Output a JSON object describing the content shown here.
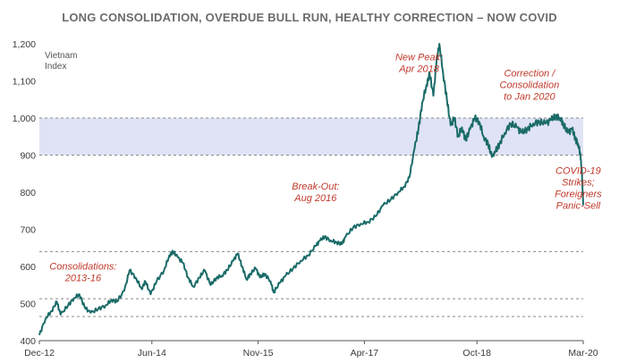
{
  "chart_data": {
    "type": "line",
    "title": "LONG CONSOLIDATION, OVERDUE BULL RUN, HEALTHY CORRECTION – NOW COVID",
    "ylabel_lines": [
      "Vietnam",
      "Index"
    ],
    "xlabel": "",
    "ylim": [
      400,
      1200
    ],
    "yticks": [
      400,
      500,
      600,
      700,
      800,
      900,
      1000,
      1100,
      1200
    ],
    "ytick_labels": [
      "400",
      "500",
      "600",
      "700",
      "800",
      "900",
      "1,000",
      "1,100",
      "1,200"
    ],
    "xlim": [
      2012.917,
      2020.167
    ],
    "xticks": [
      {
        "label": "Dec-12",
        "x": 2012.917
      },
      {
        "label": "Jun-14",
        "x": 2014.417
      },
      {
        "label": "Nov-15",
        "x": 2015.833
      },
      {
        "label": "Apr-17",
        "x": 2017.25
      },
      {
        "label": "Oct-18",
        "x": 2018.75
      },
      {
        "label": "Mar-20",
        "x": 2020.167
      }
    ],
    "band": {
      "from": 900,
      "to": 1000,
      "color": "#dfe3f5"
    },
    "reference_lines": [
      465,
      513,
      640,
      900,
      1000
    ],
    "line_color": "#1a6b68",
    "annotation_color": "#c0392b",
    "series": [
      {
        "name": "Vietnam Index",
        "points": [
          [
            2012.917,
            415
          ],
          [
            2013.0,
            460
          ],
          [
            2013.08,
            480
          ],
          [
            2013.15,
            505
          ],
          [
            2013.2,
            470
          ],
          [
            2013.3,
            495
          ],
          [
            2013.38,
            515
          ],
          [
            2013.45,
            525
          ],
          [
            2013.52,
            490
          ],
          [
            2013.6,
            475
          ],
          [
            2013.7,
            485
          ],
          [
            2013.8,
            495
          ],
          [
            2013.88,
            510
          ],
          [
            2013.95,
            505
          ],
          [
            2014.05,
            535
          ],
          [
            2014.12,
            590
          ],
          [
            2014.2,
            570
          ],
          [
            2014.28,
            540
          ],
          [
            2014.33,
            560
          ],
          [
            2014.4,
            525
          ],
          [
            2014.48,
            560
          ],
          [
            2014.58,
            590
          ],
          [
            2014.65,
            630
          ],
          [
            2014.7,
            640
          ],
          [
            2014.76,
            625
          ],
          [
            2014.83,
            610
          ],
          [
            2014.9,
            570
          ],
          [
            2014.97,
            545
          ],
          [
            2015.05,
            570
          ],
          [
            2015.12,
            590
          ],
          [
            2015.2,
            550
          ],
          [
            2015.28,
            570
          ],
          [
            2015.35,
            575
          ],
          [
            2015.42,
            590
          ],
          [
            2015.5,
            615
          ],
          [
            2015.56,
            635
          ],
          [
            2015.62,
            600
          ],
          [
            2015.68,
            565
          ],
          [
            2015.73,
            580
          ],
          [
            2015.8,
            595
          ],
          [
            2015.86,
            570
          ],
          [
            2015.92,
            580
          ],
          [
            2016.0,
            560
          ],
          [
            2016.04,
            530
          ],
          [
            2016.12,
            555
          ],
          [
            2016.2,
            575
          ],
          [
            2016.3,
            595
          ],
          [
            2016.4,
            615
          ],
          [
            2016.5,
            630
          ],
          [
            2016.6,
            655
          ],
          [
            2016.66,
            670
          ],
          [
            2016.72,
            680
          ],
          [
            2016.8,
            670
          ],
          [
            2016.88,
            665
          ],
          [
            2016.95,
            660
          ],
          [
            2017.0,
            680
          ],
          [
            2017.1,
            705
          ],
          [
            2017.2,
            715
          ],
          [
            2017.3,
            720
          ],
          [
            2017.4,
            735
          ],
          [
            2017.5,
            765
          ],
          [
            2017.6,
            780
          ],
          [
            2017.7,
            800
          ],
          [
            2017.78,
            815
          ],
          [
            2017.85,
            840
          ],
          [
            2017.92,
            920
          ],
          [
            2017.97,
            970
          ],
          [
            2018.02,
            1040
          ],
          [
            2018.08,
            1090
          ],
          [
            2018.12,
            1120
          ],
          [
            2018.17,
            1060
          ],
          [
            2018.21,
            1150
          ],
          [
            2018.25,
            1200
          ],
          [
            2018.3,
            1120
          ],
          [
            2018.35,
            1050
          ],
          [
            2018.4,
            980
          ],
          [
            2018.45,
            1000
          ],
          [
            2018.5,
            950
          ],
          [
            2018.55,
            975
          ],
          [
            2018.6,
            940
          ],
          [
            2018.66,
            970
          ],
          [
            2018.72,
            1000
          ],
          [
            2018.78,
            990
          ],
          [
            2018.84,
            950
          ],
          [
            2018.9,
            930
          ],
          [
            2018.95,
            895
          ],
          [
            2019.0,
            910
          ],
          [
            2019.05,
            930
          ],
          [
            2019.12,
            960
          ],
          [
            2019.2,
            985
          ],
          [
            2019.28,
            975
          ],
          [
            2019.35,
            960
          ],
          [
            2019.42,
            970
          ],
          [
            2019.5,
            985
          ],
          [
            2019.58,
            990
          ],
          [
            2019.66,
            985
          ],
          [
            2019.74,
            995
          ],
          [
            2019.8,
            1005
          ],
          [
            2019.86,
            1000
          ],
          [
            2019.9,
            985
          ],
          [
            2019.96,
            960
          ],
          [
            2020.02,
            970
          ],
          [
            2020.06,
            945
          ],
          [
            2020.1,
            930
          ],
          [
            2020.13,
            900
          ],
          [
            2020.15,
            850
          ],
          [
            2020.167,
            765
          ]
        ]
      }
    ],
    "annotations": [
      {
        "lines": [
          "New Peak:",
          "Apr 2018"
        ],
        "x": 2017.98,
        "y": 1155
      },
      {
        "lines": [
          "Correction /",
          "Consolidation",
          "to Jan 2020"
        ],
        "x": 2019.45,
        "y": 1112
      },
      {
        "lines": [
          "Break-Out:",
          "Aug 2016"
        ],
        "x": 2016.6,
        "y": 807
      },
      {
        "lines": [
          "Consolidations:",
          "2013-16"
        ],
        "x": 2013.5,
        "y": 592
      },
      {
        "lines": [
          "COVID-19",
          "Strikes;",
          "Foreigners",
          "Panic-Sell"
        ],
        "x": 2020.1,
        "y": 850
      }
    ]
  }
}
